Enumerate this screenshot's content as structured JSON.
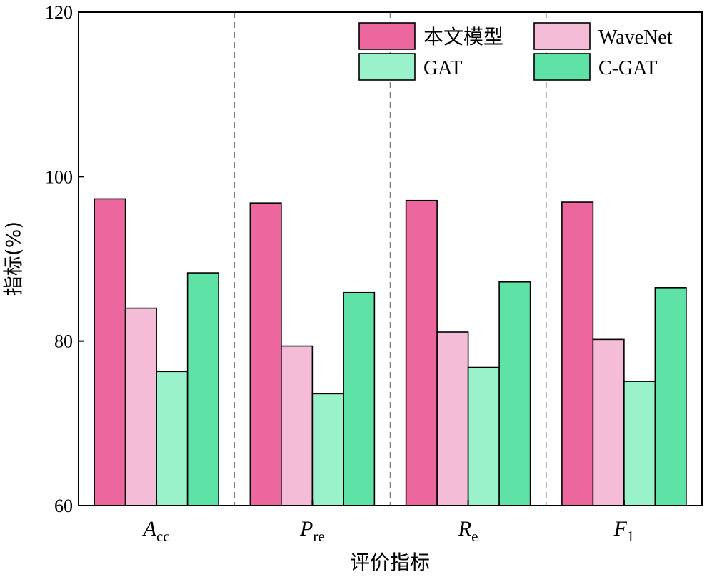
{
  "chart_data": {
    "type": "bar",
    "xlabel": "评价指标",
    "ylabel": "指标(%)",
    "ylim": [
      60,
      120
    ],
    "yticks": [
      "60",
      "80",
      "100",
      "120"
    ],
    "categories": [
      {
        "main": "A",
        "sub": "cc"
      },
      {
        "main": "P",
        "sub": "re"
      },
      {
        "main": "R",
        "sub": "e"
      },
      {
        "main": "F",
        "sub": "1"
      }
    ],
    "series": [
      {
        "name": "本文模型",
        "color": "#EC679E",
        "values": [
          97.3,
          96.8,
          97.1,
          96.9
        ]
      },
      {
        "name": "WaveNet",
        "color": "#F5BCD8",
        "values": [
          84.0,
          79.4,
          81.1,
          80.2
        ]
      },
      {
        "name": "GAT",
        "color": "#99F2CA",
        "values": [
          76.3,
          73.6,
          76.8,
          75.1
        ]
      },
      {
        "name": "C-GAT",
        "color": "#5EE2A5",
        "values": [
          88.3,
          85.9,
          87.2,
          86.5
        ]
      }
    ],
    "grid": false,
    "separators": "dashed",
    "legend_position": "top-right"
  }
}
